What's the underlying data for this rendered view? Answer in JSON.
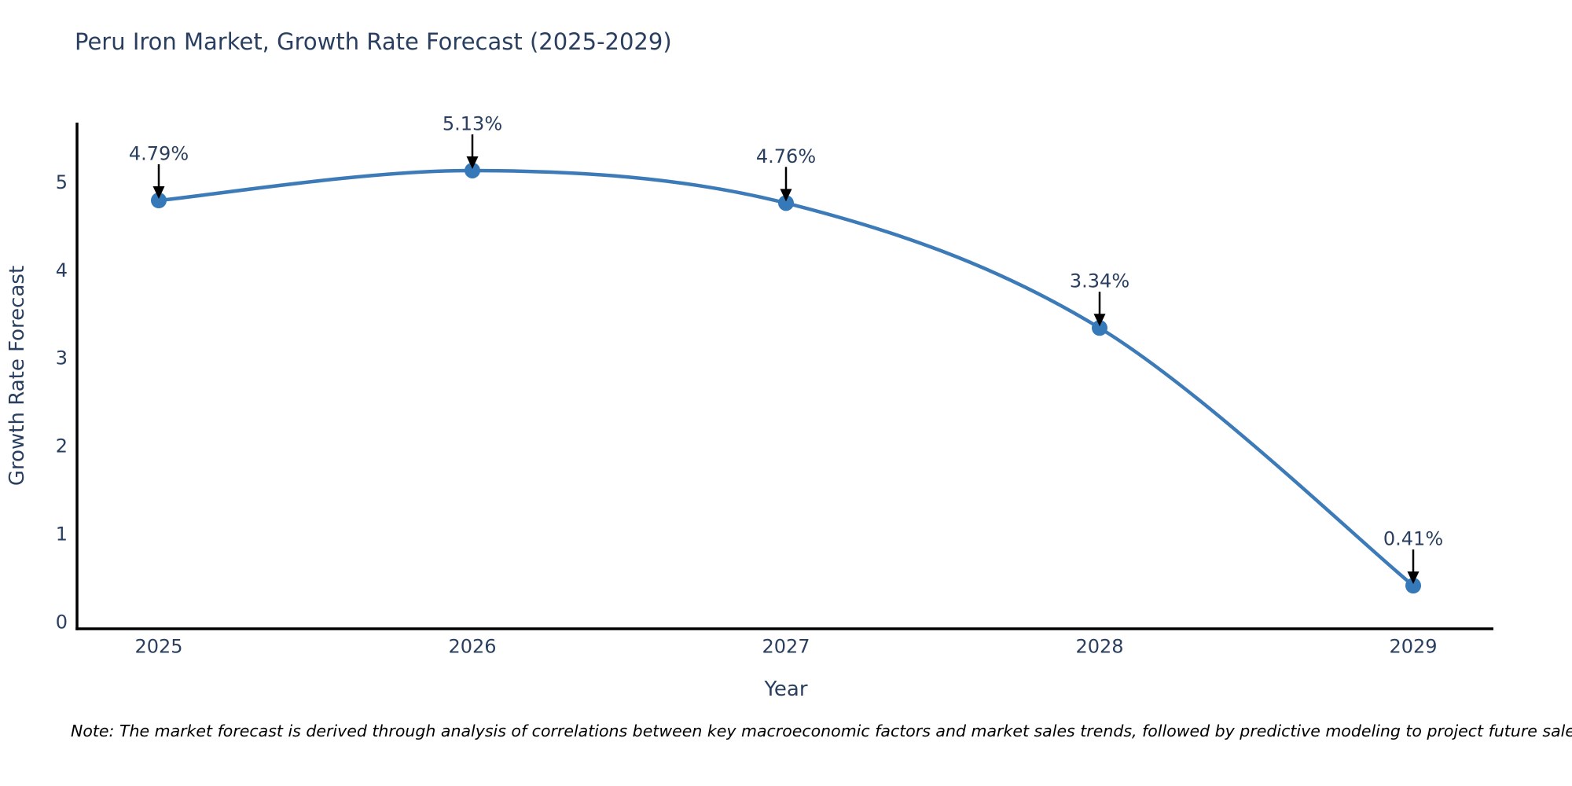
{
  "chart_data": {
    "type": "line",
    "title": "Peru Iron Market, Growth Rate Forecast (2025-2029)",
    "x": [
      "2025",
      "2026",
      "2027",
      "2028",
      "2029"
    ],
    "values": [
      4.79,
      5.13,
      4.76,
      3.34,
      0.41
    ],
    "point_labels": [
      "4.79%",
      "5.13%",
      "4.76%",
      "3.34%",
      "0.41%"
    ],
    "xlabel": "Year",
    "ylabel": "Growth Rate Forecast",
    "yticks": [
      0,
      1,
      2,
      3,
      4,
      5
    ],
    "ylim": [
      -0.08,
      5.68
    ],
    "grid": false,
    "legend_position": "none",
    "line_shape": "spline",
    "line_color": "#3c7bb8",
    "marker_color": "#3579b8",
    "axis_color": "#000000",
    "text_color": "#2a3f5f",
    "annotation_arrow_color": "#000000"
  },
  "note": "Note: The market forecast is derived through analysis of correlations between key macroeconomic factors and market sales trends, followed by predictive modeling to project future sales."
}
